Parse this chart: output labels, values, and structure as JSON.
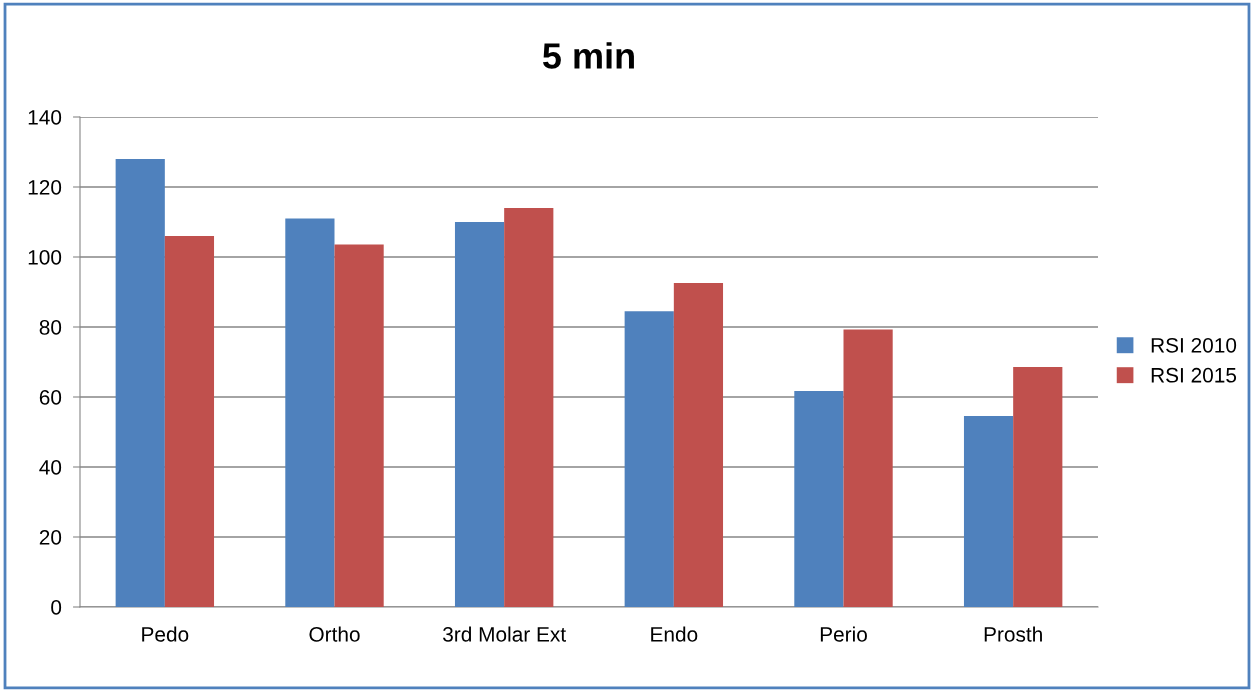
{
  "chart_data": {
    "type": "bar",
    "title": "5 min",
    "categories": [
      "Pedo",
      "Ortho",
      "3rd Molar Ext",
      "Endo",
      "Perio",
      "Prosth"
    ],
    "series": [
      {
        "name": "RSI 2010",
        "color": "#4f81bd",
        "values": [
          128,
          111,
          110,
          84.5,
          61.7,
          54.6
        ]
      },
      {
        "name": "RSI 2015",
        "color": "#c0504d",
        "values": [
          106,
          103.6,
          114,
          92.6,
          79.3,
          68.6
        ]
      }
    ],
    "ylim": [
      0,
      140
    ],
    "yticks": [
      0,
      20,
      40,
      60,
      80,
      100,
      120,
      140
    ],
    "grid": "y",
    "legend": "right"
  }
}
